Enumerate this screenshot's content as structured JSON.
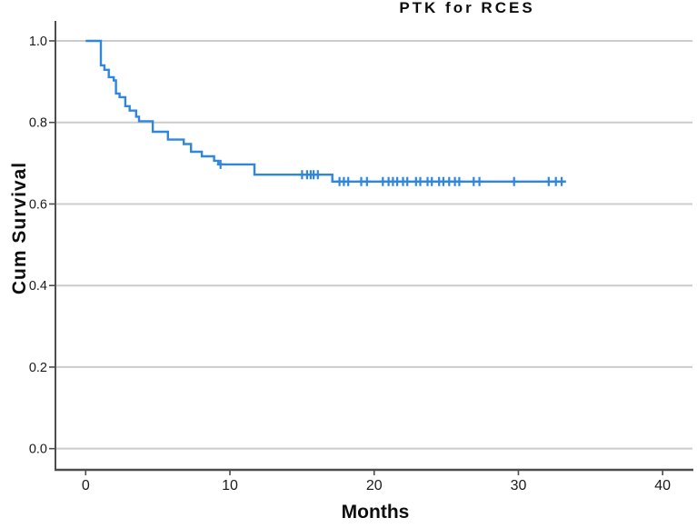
{
  "chart_data": {
    "type": "line",
    "subtype": "kaplan-meier-step-function",
    "title": "PTK for RCES",
    "xlabel": "Months",
    "ylabel": "Cum Survival",
    "xlim": [
      -2.16,
      42.13
    ],
    "ylim": [
      -0.052,
      1.049
    ],
    "grid": "horizontal",
    "legend": "none",
    "colors": {
      "curve": "#2f86dd",
      "gridline": "#cccccc",
      "axis_line": "#4d4d4d",
      "tick_label": "#1a1a1a",
      "background": "#ffffff"
    },
    "xticks": [
      {
        "value": 0,
        "label": "0"
      },
      {
        "value": 10,
        "label": "10"
      },
      {
        "value": 20,
        "label": "20"
      },
      {
        "value": 30,
        "label": "30"
      },
      {
        "value": 40,
        "label": "40"
      }
    ],
    "yticks": [
      {
        "value": 0.0,
        "label": "0.0"
      },
      {
        "value": 0.2,
        "label": "0.2"
      },
      {
        "value": 0.4,
        "label": "0.4"
      },
      {
        "value": 0.6,
        "label": "0.6"
      },
      {
        "value": 0.8,
        "label": "0.8"
      },
      {
        "value": 1.0,
        "label": "1.0"
      }
    ],
    "series": [
      {
        "name": "survival-function",
        "steps": [
          [
            0,
            1.0
          ],
          [
            1.05,
            0.94
          ],
          [
            1.3,
            0.929
          ],
          [
            1.6,
            0.911
          ],
          [
            1.95,
            0.903
          ],
          [
            2.1,
            0.871
          ],
          [
            2.35,
            0.862
          ],
          [
            2.75,
            0.84
          ],
          [
            3.05,
            0.829
          ],
          [
            3.5,
            0.814
          ],
          [
            3.7,
            0.803
          ],
          [
            4.65,
            0.777
          ],
          [
            5.7,
            0.758
          ],
          [
            6.8,
            0.747
          ],
          [
            7.3,
            0.728
          ],
          [
            8.05,
            0.717
          ],
          [
            8.9,
            0.706
          ],
          [
            9.2,
            0.697
          ],
          [
            11.7,
            0.672
          ],
          [
            17.1,
            0.655
          ]
        ],
        "end_time": 33.3,
        "censored": [
          [
            9.35,
            0.697
          ],
          [
            15.0,
            0.672
          ],
          [
            15.35,
            0.672
          ],
          [
            15.6,
            0.672
          ],
          [
            15.8,
            0.672
          ],
          [
            16.1,
            0.672
          ],
          [
            17.6,
            0.655
          ],
          [
            17.9,
            0.655
          ],
          [
            18.2,
            0.655
          ],
          [
            19.1,
            0.655
          ],
          [
            19.5,
            0.655
          ],
          [
            20.6,
            0.655
          ],
          [
            21.0,
            0.655
          ],
          [
            21.3,
            0.655
          ],
          [
            21.6,
            0.655
          ],
          [
            22.0,
            0.655
          ],
          [
            22.3,
            0.655
          ],
          [
            22.9,
            0.655
          ],
          [
            23.2,
            0.655
          ],
          [
            23.7,
            0.655
          ],
          [
            24.0,
            0.655
          ],
          [
            24.5,
            0.655
          ],
          [
            24.8,
            0.655
          ],
          [
            25.2,
            0.655
          ],
          [
            25.6,
            0.655
          ],
          [
            25.9,
            0.655
          ],
          [
            26.9,
            0.655
          ],
          [
            27.3,
            0.655
          ],
          [
            29.7,
            0.655
          ],
          [
            32.1,
            0.655
          ],
          [
            32.6,
            0.655
          ],
          [
            33.0,
            0.655
          ]
        ]
      }
    ]
  }
}
